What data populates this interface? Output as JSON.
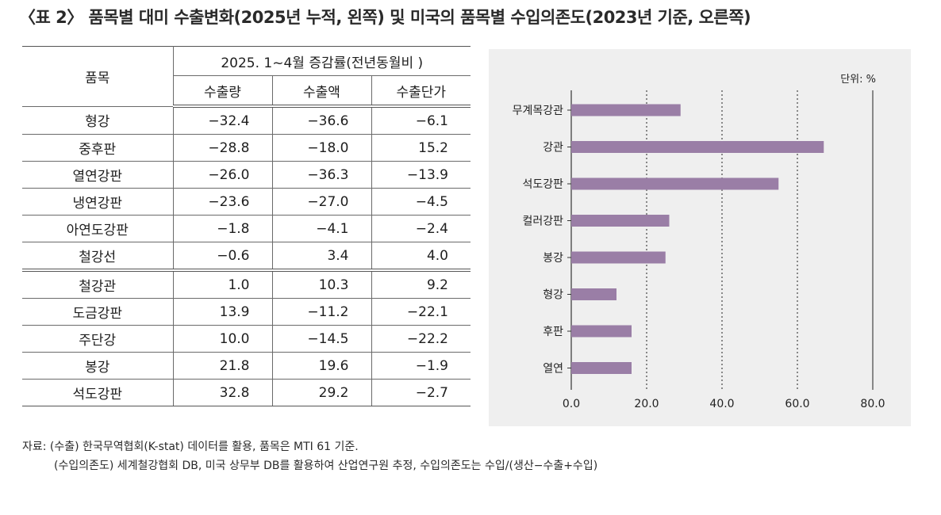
{
  "title": "〈표 2〉 품목별 대미 수출변화(2025년 누적, 왼쪽) 및 미국의 품목별 수입의존도(2023년 기준, 오른쪽)",
  "table": {
    "header_item": "품목",
    "header_group": "2025. 1~4월 증감률(전년동월비 )",
    "columns": [
      "수출량",
      "수출액",
      "수출단가"
    ],
    "rows": [
      {
        "item": "형강",
        "values": [
          "−32.4",
          "−36.6",
          "−6.1"
        ]
      },
      {
        "item": "중후판",
        "values": [
          "−28.8",
          "−18.0",
          "15.2"
        ]
      },
      {
        "item": "열연강판",
        "values": [
          "−26.0",
          "−36.3",
          "−13.9"
        ]
      },
      {
        "item": "냉연강판",
        "values": [
          "−23.6",
          "−27.0",
          "−4.5"
        ]
      },
      {
        "item": "아연도강판",
        "values": [
          "−1.8",
          "−4.1",
          "−2.4"
        ]
      },
      {
        "item": "철강선",
        "values": [
          "−0.6",
          "3.4",
          "4.0"
        ]
      },
      {
        "item": "철강관",
        "values": [
          "1.0",
          "10.3",
          "9.2"
        ]
      },
      {
        "item": "도금강판",
        "values": [
          "13.9",
          "−11.2",
          "−22.1"
        ]
      },
      {
        "item": "주단강",
        "values": [
          "10.0",
          "−14.5",
          "−22.2"
        ]
      },
      {
        "item": "봉강",
        "values": [
          "21.8",
          "19.6",
          "−1.9"
        ]
      },
      {
        "item": "석도강판",
        "values": [
          "32.8",
          "29.2",
          "−2.7"
        ]
      }
    ]
  },
  "chart_data": {
    "type": "bar",
    "orientation": "horizontal",
    "unit_label": "단위: %",
    "categories": [
      "무계목강관",
      "강관",
      "석도강판",
      "컬러강판",
      "봉강",
      "형강",
      "후판",
      "열연"
    ],
    "values": [
      29,
      67,
      55,
      26,
      25,
      12,
      16,
      16
    ],
    "xlim": [
      0,
      80
    ],
    "xticks": [
      "0.0",
      "20.0",
      "40.0",
      "60.0",
      "80.0"
    ],
    "gridlines": "dotted",
    "bar_color": "#9a7ea6"
  },
  "notes": [
    "자료: (수출) 한국무역협회(K-stat) 데이터를 활용, 품목은 MTI 61 기준.",
    "(수입의존도) 세계철강협회 DB, 미국 상무부 DB를 활용하여 산업연구원 추정, 수입의존도는 수입/(생산−수출+수입)"
  ]
}
